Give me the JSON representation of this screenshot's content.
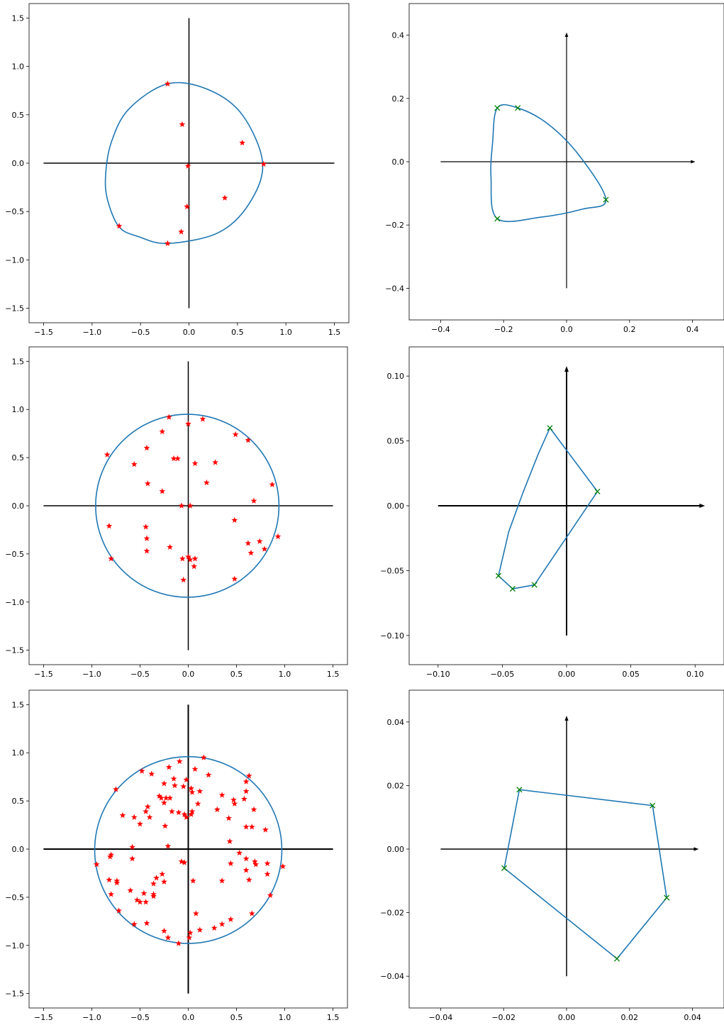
{
  "chart_data": [
    {
      "id": "left-1",
      "type": "scatter",
      "xlim": [
        -1.65,
        1.65
      ],
      "ylim": [
        -1.65,
        1.65
      ],
      "xticks": [
        -1.5,
        -1.0,
        -0.5,
        0.0,
        0.5,
        1.0,
        1.5
      ],
      "xtick_labels": [
        "−1.5",
        "−1.0",
        "−0.5",
        "0.0",
        "0.5",
        "1.0",
        "1.5"
      ],
      "yticks": [
        -1.5,
        -1.0,
        -0.5,
        0.0,
        0.5,
        1.0,
        1.5
      ],
      "ytick_labels": [
        "−1.5",
        "−1.0",
        "−0.5",
        "0.0",
        "0.5",
        "1.0",
        "1.5"
      ],
      "axes_lines": {
        "x": [
          -1.5,
          1.5
        ],
        "y": [
          -1.5,
          1.5
        ],
        "arrows": false,
        "width": 1.5
      },
      "curve": {
        "kind": "closed",
        "smooth": true,
        "color": "#1f77b4",
        "points": [
          [
            0.76,
            0.0
          ],
          [
            0.62,
            -0.42
          ],
          [
            0.3,
            -0.72
          ],
          [
            -0.22,
            -0.83
          ],
          [
            -0.52,
            -0.76
          ],
          [
            -0.72,
            -0.66
          ],
          [
            -0.84,
            -0.38
          ],
          [
            -0.86,
            -0.12
          ],
          [
            -0.8,
            0.22
          ],
          [
            -0.62,
            0.56
          ],
          [
            -0.22,
            0.82
          ],
          [
            0.2,
            0.76
          ],
          [
            0.55,
            0.5
          ]
        ]
      },
      "markers": {
        "symbol": "star",
        "color": "#ff0000",
        "points": [
          [
            -0.22,
            0.82
          ],
          [
            -0.07,
            0.4
          ],
          [
            0.55,
            0.21
          ],
          [
            -0.01,
            -0.03
          ],
          [
            0.77,
            -0.01
          ],
          [
            0.37,
            -0.36
          ],
          [
            -0.02,
            -0.45
          ],
          [
            -0.72,
            -0.65
          ],
          [
            -0.08,
            -0.71
          ],
          [
            -0.22,
            -0.83
          ]
        ]
      }
    },
    {
      "id": "right-1",
      "type": "line",
      "xlim": [
        -0.5,
        0.5
      ],
      "ylim": [
        -0.5,
        0.5
      ],
      "xticks": [
        -0.4,
        -0.2,
        0.0,
        0.2,
        0.4
      ],
      "xtick_labels": [
        "−0.4",
        "−0.2",
        "0.0",
        "0.2",
        "0.4"
      ],
      "yticks": [
        -0.4,
        -0.2,
        0.0,
        0.2,
        0.4
      ],
      "ytick_labels": [
        "−0.4",
        "−0.2",
        "0.0",
        "0.2",
        "0.4"
      ],
      "axes_lines": {
        "x": [
          -0.4,
          0.4
        ],
        "y": [
          -0.4,
          0.4
        ],
        "arrows": true,
        "width": 1.2
      },
      "curve": {
        "kind": "closed",
        "smooth": true,
        "color": "#1f77b4",
        "points": [
          [
            -0.22,
            0.17
          ],
          [
            -0.155,
            0.17
          ],
          [
            -0.06,
            0.12
          ],
          [
            0.04,
            0.02
          ],
          [
            0.125,
            -0.12
          ],
          [
            0.05,
            -0.15
          ],
          [
            -0.08,
            -0.175
          ],
          [
            -0.22,
            -0.18
          ],
          [
            -0.24,
            -0.05
          ],
          [
            -0.235,
            0.06
          ]
        ]
      },
      "markers": {
        "symbol": "x",
        "color": "#008000",
        "points": [
          [
            -0.22,
            0.17
          ],
          [
            -0.155,
            0.17
          ],
          [
            0.125,
            -0.12
          ],
          [
            -0.22,
            -0.18
          ]
        ]
      }
    },
    {
      "id": "left-2",
      "type": "scatter",
      "xlim": [
        -1.65,
        1.65
      ],
      "ylim": [
        -1.65,
        1.65
      ],
      "xticks": [
        -1.5,
        -1.0,
        -0.5,
        0.0,
        0.5,
        1.0,
        1.5
      ],
      "xtick_labels": [
        "−1.5",
        "−1.0",
        "−0.5",
        "0.0",
        "0.5",
        "1.0",
        "1.5"
      ],
      "yticks": [
        -1.5,
        -1.0,
        -0.5,
        0.0,
        0.5,
        1.0,
        1.5
      ],
      "ytick_labels": [
        "−1.5",
        "−1.0",
        "−0.5",
        "0.0",
        "0.5",
        "1.0",
        "1.5"
      ],
      "axes_lines": {
        "x": [
          -1.5,
          1.5
        ],
        "y": [
          -1.5,
          1.5
        ],
        "arrows": false,
        "width": 1.5
      },
      "curve": {
        "kind": "circle",
        "color": "#1f77b4",
        "center": [
          -0.01,
          0.0
        ],
        "radius": 0.95
      },
      "markers": {
        "symbol": "star",
        "color": "#ff0000",
        "points": [
          [
            -0.2,
            0.92
          ],
          [
            0.15,
            0.9
          ],
          [
            0.0,
            0.85
          ],
          [
            -0.27,
            0.77
          ],
          [
            0.49,
            0.74
          ],
          [
            0.62,
            0.68
          ],
          [
            -0.84,
            0.53
          ],
          [
            -0.43,
            0.6
          ],
          [
            -0.15,
            0.49
          ],
          [
            -0.11,
            0.49
          ],
          [
            0.07,
            0.44
          ],
          [
            0.28,
            0.45
          ],
          [
            -0.56,
            0.43
          ],
          [
            0.19,
            0.24
          ],
          [
            -0.42,
            0.23
          ],
          [
            0.87,
            0.22
          ],
          [
            -0.27,
            0.15
          ],
          [
            0.68,
            0.05
          ],
          [
            -0.07,
            0.0
          ],
          [
            0.02,
            0.0
          ],
          [
            -0.82,
            -0.21
          ],
          [
            -0.44,
            -0.22
          ],
          [
            0.48,
            -0.15
          ],
          [
            -0.43,
            -0.34
          ],
          [
            0.93,
            -0.32
          ],
          [
            0.62,
            -0.39
          ],
          [
            0.74,
            -0.37
          ],
          [
            -0.43,
            -0.47
          ],
          [
            -0.19,
            -0.43
          ],
          [
            0.65,
            -0.49
          ],
          [
            0.79,
            -0.45
          ],
          [
            -0.8,
            -0.55
          ],
          [
            -0.06,
            -0.55
          ],
          [
            0.0,
            -0.53
          ],
          [
            0.02,
            -0.56
          ],
          [
            0.07,
            -0.55
          ],
          [
            0.06,
            -0.63
          ],
          [
            0.48,
            -0.76
          ],
          [
            -0.05,
            -0.77
          ]
        ]
      }
    },
    {
      "id": "right-2",
      "type": "line",
      "xlim": [
        -0.1225,
        0.1225
      ],
      "ylim": [
        -0.1225,
        0.1225
      ],
      "xticks": [
        -0.1,
        -0.05,
        0.0,
        0.05,
        0.1
      ],
      "xtick_labels": [
        "−0.10",
        "−0.05",
        "0.00",
        "0.05",
        "0.10"
      ],
      "yticks": [
        -0.1,
        -0.05,
        0.0,
        0.05,
        0.1
      ],
      "ytick_labels": [
        "−0.10",
        "−0.05",
        "0.00",
        "0.05",
        "0.10"
      ],
      "axes_lines": {
        "x": [
          -0.1,
          0.105
        ],
        "y": [
          -0.1,
          0.105
        ],
        "arrows": true,
        "width": 2.0
      },
      "curve": {
        "kind": "polyline",
        "color": "#1f77b4",
        "points": [
          [
            -0.013,
            0.06
          ],
          [
            0.024,
            0.011
          ],
          [
            -0.025,
            -0.061
          ],
          [
            -0.042,
            -0.064
          ],
          [
            -0.053,
            -0.054
          ],
          [
            -0.045,
            -0.02
          ],
          [
            -0.034,
            0.01
          ],
          [
            -0.022,
            0.04
          ],
          [
            -0.013,
            0.06
          ]
        ]
      },
      "markers": {
        "symbol": "x",
        "color": "#008000",
        "points": [
          [
            -0.013,
            0.06
          ],
          [
            0.024,
            0.011
          ],
          [
            -0.025,
            -0.061
          ],
          [
            -0.042,
            -0.064
          ],
          [
            -0.053,
            -0.054
          ]
        ]
      }
    },
    {
      "id": "left-3",
      "type": "scatter",
      "xlim": [
        -1.65,
        1.65
      ],
      "ylim": [
        -1.65,
        1.65
      ],
      "xticks": [
        -1.5,
        -1.0,
        -0.5,
        0.0,
        0.5,
        1.0,
        1.5
      ],
      "xtick_labels": [
        "−1.5",
        "−1.0",
        "−0.5",
        "0.0",
        "0.5",
        "1.0",
        "1.5"
      ],
      "yticks": [
        -1.5,
        -1.0,
        -0.5,
        0.0,
        0.5,
        1.0,
        1.5
      ],
      "ytick_labels": [
        "−1.5",
        "−1.0",
        "−0.5",
        "0.0",
        "0.5",
        "1.0",
        "1.5"
      ],
      "axes_lines": {
        "x": [
          -1.5,
          1.5
        ],
        "y": [
          -1.5,
          1.5
        ],
        "arrows": false,
        "width": 2.0
      },
      "curve": {
        "kind": "circle",
        "color": "#1f77b4",
        "center": [
          0.0,
          -0.01
        ],
        "radius": 0.97
      },
      "markers": {
        "symbol": "star",
        "color": "#ff0000",
        "points": [
          [
            0.16,
            0.95
          ],
          [
            -0.09,
            0.91
          ],
          [
            -0.2,
            0.85
          ],
          [
            0.07,
            0.83
          ],
          [
            -0.48,
            0.81
          ],
          [
            -0.38,
            0.78
          ],
          [
            0.63,
            0.76
          ],
          [
            -0.15,
            0.73
          ],
          [
            0.21,
            0.77
          ],
          [
            -0.02,
            0.72
          ],
          [
            -0.25,
            0.68
          ],
          [
            -0.14,
            0.66
          ],
          [
            -0.05,
            0.65
          ],
          [
            0.03,
            0.63
          ],
          [
            0.6,
            0.7
          ],
          [
            -0.75,
            0.62
          ],
          [
            0.12,
            0.6
          ],
          [
            0.04,
            0.59
          ],
          [
            0.6,
            0.6
          ],
          [
            -0.23,
            0.53
          ],
          [
            0.35,
            0.56
          ],
          [
            -0.28,
            0.53
          ],
          [
            -0.3,
            0.55
          ],
          [
            0.47,
            0.51
          ],
          [
            0.58,
            0.52
          ],
          [
            -0.19,
            0.53
          ],
          [
            -0.25,
            0.48
          ],
          [
            -0.42,
            0.44
          ],
          [
            0.1,
            0.47
          ],
          [
            0.48,
            0.47
          ],
          [
            -0.44,
            0.39
          ],
          [
            -0.68,
            0.35
          ],
          [
            -0.17,
            0.39
          ],
          [
            -0.1,
            0.38
          ],
          [
            0.04,
            0.39
          ],
          [
            0.3,
            0.41
          ],
          [
            0.68,
            0.41
          ],
          [
            -0.04,
            0.36
          ],
          [
            0.03,
            0.36
          ],
          [
            -0.56,
            0.33
          ],
          [
            -0.4,
            0.33
          ],
          [
            -0.02,
            0.33
          ],
          [
            0.42,
            0.32
          ],
          [
            -0.5,
            0.26
          ],
          [
            -0.24,
            0.24
          ],
          [
            0.6,
            0.23
          ],
          [
            0.66,
            0.23
          ],
          [
            0.8,
            0.2
          ],
          [
            0.43,
            0.08
          ],
          [
            -0.58,
            0.02
          ],
          [
            -0.21,
            0.03
          ],
          [
            0.53,
            -0.04
          ],
          [
            -0.81,
            -0.08
          ],
          [
            -0.8,
            -0.06
          ],
          [
            -0.58,
            -0.1
          ],
          [
            0.6,
            -0.1
          ],
          [
            -0.07,
            -0.13
          ],
          [
            -0.04,
            -0.14
          ],
          [
            0.44,
            -0.15
          ],
          [
            0.69,
            -0.13
          ],
          [
            0.7,
            -0.16
          ],
          [
            0.82,
            -0.15
          ],
          [
            -0.95,
            -0.16
          ],
          [
            0.98,
            -0.18
          ],
          [
            0.6,
            -0.22
          ],
          [
            -0.27,
            -0.26
          ],
          [
            0.82,
            -0.26
          ],
          [
            -0.82,
            -0.32
          ],
          [
            -0.74,
            -0.33
          ],
          [
            -0.74,
            -0.35
          ],
          [
            -0.33,
            -0.3
          ],
          [
            -0.25,
            -0.34
          ],
          [
            0.05,
            -0.33
          ],
          [
            0.35,
            -0.33
          ],
          [
            0.63,
            -0.32
          ],
          [
            -0.36,
            -0.36
          ],
          [
            -0.6,
            -0.43
          ],
          [
            -0.46,
            -0.46
          ],
          [
            -0.36,
            -0.47
          ],
          [
            -0.36,
            -0.49
          ],
          [
            -0.8,
            -0.47
          ],
          [
            0.85,
            -0.48
          ],
          [
            -0.53,
            -0.53
          ],
          [
            -0.5,
            -0.55
          ],
          [
            -0.44,
            -0.55
          ],
          [
            -0.72,
            -0.64
          ],
          [
            0.08,
            -0.67
          ],
          [
            0.66,
            -0.67
          ],
          [
            0.44,
            -0.73
          ],
          [
            0.12,
            -0.84
          ],
          [
            -0.43,
            -0.77
          ],
          [
            -0.56,
            -0.78
          ],
          [
            0.35,
            -0.78
          ],
          [
            0.27,
            -0.82
          ],
          [
            -0.25,
            -0.85
          ],
          [
            0.02,
            -0.87
          ],
          [
            -0.21,
            -0.92
          ],
          [
            0.01,
            -0.92
          ],
          [
            -0.1,
            -0.98
          ]
        ]
      }
    },
    {
      "id": "right-3",
      "type": "line",
      "xlim": [
        -0.05,
        0.05
      ],
      "ylim": [
        -0.05,
        0.05
      ],
      "xticks": [
        -0.04,
        -0.02,
        0.0,
        0.02,
        0.04
      ],
      "xtick_labels": [
        "−0.04",
        "−0.02",
        "0.00",
        "0.02",
        "0.04"
      ],
      "yticks": [
        -0.04,
        -0.02,
        0.0,
        0.02,
        0.04
      ],
      "ytick_labels": [
        "−0.04",
        "−0.02",
        "0.00",
        "0.02",
        "0.04"
      ],
      "axes_lines": {
        "x": [
          -0.04,
          0.041
        ],
        "y": [
          -0.04,
          0.041
        ],
        "arrows": true,
        "width": 1.5
      },
      "curve": {
        "kind": "polyline",
        "color": "#1f77b4",
        "points": [
          [
            -0.015,
            0.0187
          ],
          [
            0.0273,
            0.0137
          ],
          [
            0.0318,
            -0.0153
          ],
          [
            0.016,
            -0.0345
          ],
          [
            -0.0198,
            -0.006
          ],
          [
            -0.015,
            0.0187
          ]
        ]
      },
      "markers": {
        "symbol": "x",
        "color": "#008000",
        "points": [
          [
            -0.015,
            0.0187
          ],
          [
            0.0273,
            0.0137
          ],
          [
            0.0318,
            -0.0153
          ],
          [
            0.016,
            -0.0345
          ],
          [
            -0.0198,
            -0.006
          ]
        ]
      }
    }
  ]
}
